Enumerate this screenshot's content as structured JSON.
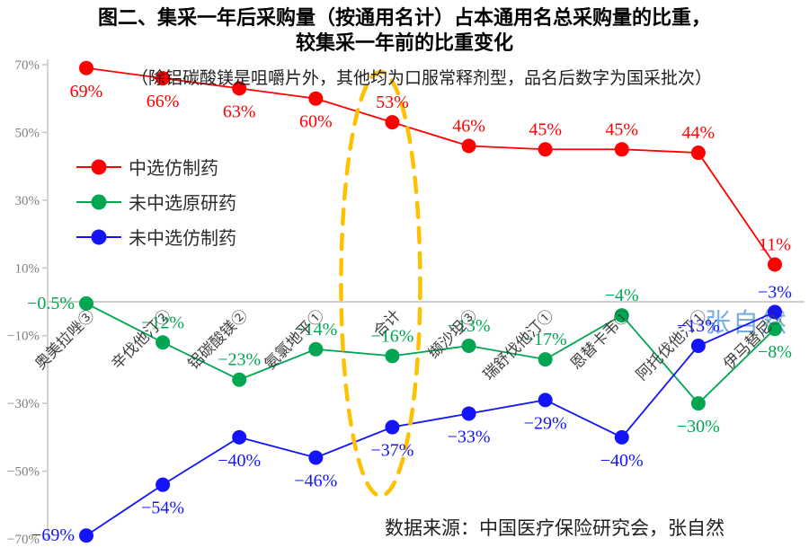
{
  "title": {
    "line1": "图二、集采一年后采购量（按通用名计）占本通用名总采购量的比重，",
    "line2": "较集采一年前的比重变化"
  },
  "subtitle": "（除铝碳酸镁是咀嚼片外，其他均为口服常释剂型，品名后数字为国采批次）",
  "source": "数据来源：中国医疗保险研究会，张自然",
  "watermark": "张自然",
  "legend": [
    {
      "label": "中选仿制药",
      "color": "#ff0000"
    },
    {
      "label": "未中选原研药",
      "color": "#00a651"
    },
    {
      "label": "未中选仿制药",
      "color": "#1414fa"
    }
  ],
  "chart_data": {
    "type": "line",
    "title": "图二、集采一年后采购量（按通用名计）占本通用名总采购量的比重，较集采一年前的比重变化",
    "xlabel": "",
    "ylabel": "",
    "categories": [
      "奥美拉唑③",
      "辛伐他汀②",
      "铝碳酸镁②",
      "氨氯地平①",
      "合计",
      "缬沙坦③",
      "瑞舒伐他汀①",
      "恩替卡韦①",
      "阿托伐他汀①",
      "伊马替尼①"
    ],
    "series": [
      {
        "name": "中选仿制药",
        "color": "#ff0000",
        "values": [
          69,
          66,
          63,
          60,
          53,
          46,
          45,
          45,
          44,
          11
        ],
        "labels": [
          "69%",
          "66%",
          "63%",
          "60%",
          "53%",
          "46%",
          "45%",
          "45%",
          "44%",
          "11%"
        ],
        "label_pos": [
          "below",
          "below",
          "below",
          "below",
          "above",
          "above",
          "above",
          "above",
          "above",
          "above"
        ]
      },
      {
        "name": "未中选原研药",
        "color": "#00a651",
        "values": [
          -0.5,
          -12,
          -23,
          -14,
          -16,
          -13,
          -17,
          -4,
          -30,
          -8
        ],
        "labels": [
          "−0.5%",
          "−12%",
          "−23%",
          "−14%",
          "−16%",
          "−13%",
          "−17%",
          "−4%",
          "−30%",
          "−8%"
        ],
        "label_pos": [
          "left",
          "above",
          "above",
          "above",
          "above",
          "above",
          "above",
          "above",
          "below",
          "below"
        ]
      },
      {
        "name": "未中选仿制药",
        "color": "#1414fa",
        "values": [
          -69,
          -54,
          -40,
          -46,
          -37,
          -33,
          -29,
          -40,
          -13,
          -3
        ],
        "labels": [
          "−69%",
          "−54%",
          "−40%",
          "−46%",
          "−37%",
          "−33%",
          "−29%",
          "−40%",
          "−13%",
          "−3%"
        ],
        "label_pos": [
          "left",
          "below",
          "below",
          "below",
          "below",
          "below",
          "below",
          "below",
          "above",
          "above"
        ]
      }
    ],
    "y_axis": {
      "min": -70,
      "max": 70,
      "ticks": [
        70,
        50,
        30,
        10,
        -10,
        -30,
        -50,
        -70
      ],
      "tick_labels": [
        "70%",
        "50%",
        "30%",
        "10%",
        "−10%",
        "−30%",
        "−50%",
        "−70%"
      ]
    },
    "grid": false,
    "legend_position": "inside-upper-left",
    "annotation_ellipse": {
      "category": "合计",
      "color": "#ffc000"
    }
  }
}
